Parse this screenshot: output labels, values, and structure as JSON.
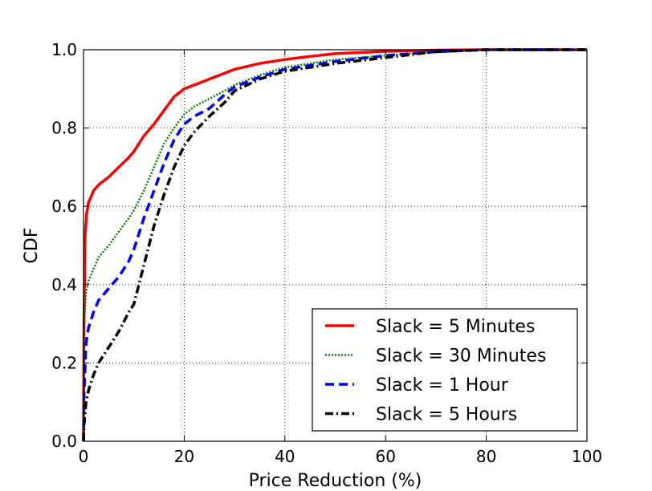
{
  "chart_data": {
    "type": "line",
    "xlabel": "Price Reduction (%)",
    "ylabel": "CDF",
    "xlim": [
      0,
      100
    ],
    "ylim": [
      0,
      1.0
    ],
    "xticks": [
      "0",
      "20",
      "40",
      "60",
      "80",
      "100"
    ],
    "yticks": [
      "0.0",
      "0.2",
      "0.4",
      "0.6",
      "0.8",
      "1.0"
    ],
    "grid": true,
    "legend_position": "lower-right",
    "series": [
      {
        "name": "Slack = 5 Minutes",
        "color": "#ff0000",
        "style": "solid",
        "points": [
          [
            0,
            0
          ],
          [
            0.1,
            0.3
          ],
          [
            0.3,
            0.52
          ],
          [
            0.6,
            0.58
          ],
          [
            1,
            0.61
          ],
          [
            2,
            0.64
          ],
          [
            3,
            0.655
          ],
          [
            5,
            0.675
          ],
          [
            7,
            0.7
          ],
          [
            9,
            0.725
          ],
          [
            10,
            0.74
          ],
          [
            12,
            0.78
          ],
          [
            14,
            0.81
          ],
          [
            16,
            0.845
          ],
          [
            18,
            0.88
          ],
          [
            20,
            0.9
          ],
          [
            22,
            0.91
          ],
          [
            25,
            0.925
          ],
          [
            28,
            0.94
          ],
          [
            30,
            0.95
          ],
          [
            35,
            0.965
          ],
          [
            40,
            0.975
          ],
          [
            45,
            0.983
          ],
          [
            50,
            0.99
          ],
          [
            60,
            0.996
          ],
          [
            70,
            0.999
          ],
          [
            80,
            1.0
          ],
          [
            100,
            1.0
          ]
        ]
      },
      {
        "name": "Slack = 30 Minutes",
        "color": "#008000",
        "style": "dotted",
        "points": [
          [
            0,
            0
          ],
          [
            0.1,
            0.3
          ],
          [
            0.5,
            0.38
          ],
          [
            1,
            0.41
          ],
          [
            2,
            0.44
          ],
          [
            3,
            0.47
          ],
          [
            5,
            0.5
          ],
          [
            7,
            0.535
          ],
          [
            9,
            0.57
          ],
          [
            10,
            0.59
          ],
          [
            12,
            0.64
          ],
          [
            14,
            0.7
          ],
          [
            16,
            0.76
          ],
          [
            18,
            0.8
          ],
          [
            20,
            0.835
          ],
          [
            22,
            0.855
          ],
          [
            25,
            0.875
          ],
          [
            28,
            0.895
          ],
          [
            30,
            0.91
          ],
          [
            35,
            0.935
          ],
          [
            40,
            0.955
          ],
          [
            45,
            0.965
          ],
          [
            50,
            0.975
          ],
          [
            60,
            0.985
          ],
          [
            70,
            0.995
          ],
          [
            80,
            1.0
          ],
          [
            100,
            1.0
          ]
        ]
      },
      {
        "name": "Slack = 1 Hour",
        "color": "#0000ff",
        "style": "dashed",
        "points": [
          [
            0,
            0
          ],
          [
            0.1,
            0.12
          ],
          [
            0.5,
            0.25
          ],
          [
            1,
            0.29
          ],
          [
            2,
            0.33
          ],
          [
            3,
            0.36
          ],
          [
            5,
            0.39
          ],
          [
            7,
            0.42
          ],
          [
            9,
            0.46
          ],
          [
            10,
            0.49
          ],
          [
            12,
            0.57
          ],
          [
            14,
            0.64
          ],
          [
            16,
            0.71
          ],
          [
            18,
            0.77
          ],
          [
            20,
            0.81
          ],
          [
            22,
            0.83
          ],
          [
            25,
            0.85
          ],
          [
            28,
            0.885
          ],
          [
            30,
            0.905
          ],
          [
            35,
            0.93
          ],
          [
            40,
            0.95
          ],
          [
            45,
            0.96
          ],
          [
            50,
            0.97
          ],
          [
            60,
            0.985
          ],
          [
            70,
            0.995
          ],
          [
            80,
            1.0
          ],
          [
            100,
            1.0
          ]
        ]
      },
      {
        "name": "Slack = 5 Hours",
        "color": "#000000",
        "style": "dashdot",
        "points": [
          [
            0,
            0
          ],
          [
            0.1,
            0.04
          ],
          [
            0.5,
            0.1
          ],
          [
            1,
            0.13
          ],
          [
            2,
            0.17
          ],
          [
            3,
            0.2
          ],
          [
            5,
            0.24
          ],
          [
            7,
            0.28
          ],
          [
            9,
            0.33
          ],
          [
            10,
            0.35
          ],
          [
            12,
            0.45
          ],
          [
            14,
            0.55
          ],
          [
            16,
            0.63
          ],
          [
            18,
            0.7
          ],
          [
            20,
            0.755
          ],
          [
            22,
            0.79
          ],
          [
            25,
            0.83
          ],
          [
            28,
            0.865
          ],
          [
            30,
            0.895
          ],
          [
            35,
            0.925
          ],
          [
            40,
            0.945
          ],
          [
            45,
            0.955
          ],
          [
            50,
            0.965
          ],
          [
            60,
            0.98
          ],
          [
            70,
            0.995
          ],
          [
            80,
            1.0
          ],
          [
            100,
            1.0
          ]
        ]
      }
    ]
  }
}
